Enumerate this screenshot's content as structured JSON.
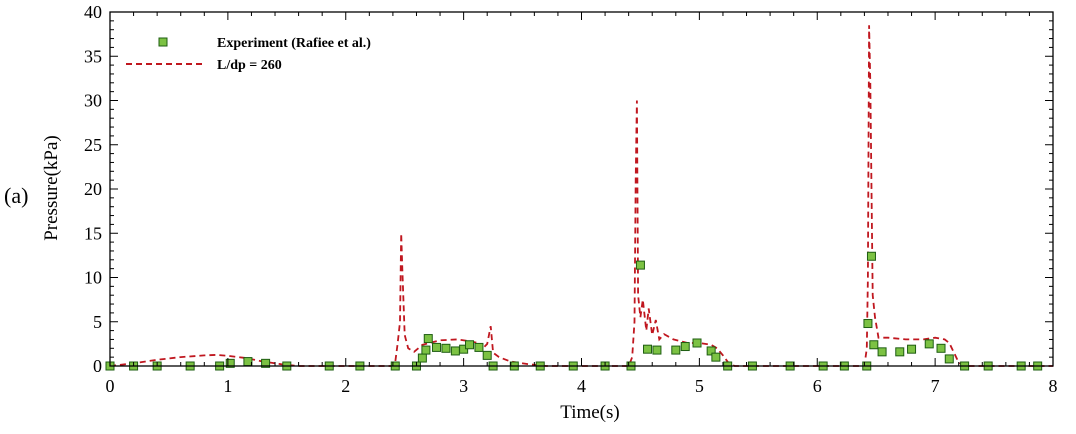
{
  "panel_label": "(a)",
  "chart_data": {
    "type": "line",
    "xlabel": "Time(s)",
    "ylabel": "Pressure(kPa)",
    "xlim": [
      0,
      8
    ],
    "ylim": [
      0,
      40
    ],
    "xticks": [
      0,
      1,
      2,
      3,
      4,
      5,
      6,
      7,
      8
    ],
    "yticks": [
      0,
      5,
      10,
      15,
      20,
      25,
      30,
      35,
      40
    ],
    "grid": false,
    "legend_position": "top-left",
    "series": [
      {
        "name": "Experiment (Rafiee et al.)",
        "kind": "scatter",
        "marker": "square",
        "color": "#7cc243",
        "edge_color": "#1e5d12",
        "points": [
          [
            0.0,
            0.0
          ],
          [
            0.2,
            0.0
          ],
          [
            0.4,
            0.0
          ],
          [
            0.68,
            0.0
          ],
          [
            0.93,
            0.0
          ],
          [
            1.02,
            0.3
          ],
          [
            1.17,
            0.5
          ],
          [
            1.32,
            0.3
          ],
          [
            1.5,
            0.0
          ],
          [
            1.86,
            0.0
          ],
          [
            2.12,
            0.0
          ],
          [
            2.42,
            0.0
          ],
          [
            2.6,
            0.0
          ],
          [
            2.65,
            0.9
          ],
          [
            2.68,
            1.8
          ],
          [
            2.7,
            3.1
          ],
          [
            2.77,
            2.1
          ],
          [
            2.85,
            2.0
          ],
          [
            2.93,
            1.7
          ],
          [
            3.0,
            1.9
          ],
          [
            3.05,
            2.4
          ],
          [
            3.13,
            2.1
          ],
          [
            3.2,
            1.2
          ],
          [
            3.25,
            0.0
          ],
          [
            3.43,
            0.0
          ],
          [
            3.65,
            0.0
          ],
          [
            3.93,
            0.0
          ],
          [
            4.2,
            0.0
          ],
          [
            4.42,
            0.0
          ],
          [
            4.5,
            11.4
          ],
          [
            4.56,
            1.9
          ],
          [
            4.64,
            1.8
          ],
          [
            4.8,
            1.8
          ],
          [
            4.88,
            2.2
          ],
          [
            4.98,
            2.6
          ],
          [
            5.1,
            1.7
          ],
          [
            5.14,
            1.0
          ],
          [
            5.24,
            0.0
          ],
          [
            5.45,
            0.0
          ],
          [
            5.77,
            0.0
          ],
          [
            6.05,
            0.0
          ],
          [
            6.23,
            0.0
          ],
          [
            6.42,
            0.0
          ],
          [
            6.43,
            4.8
          ],
          [
            6.46,
            12.4
          ],
          [
            6.48,
            2.4
          ],
          [
            6.55,
            1.6
          ],
          [
            6.7,
            1.6
          ],
          [
            6.8,
            1.9
          ],
          [
            6.95,
            2.5
          ],
          [
            7.05,
            2.0
          ],
          [
            7.12,
            0.8
          ],
          [
            7.25,
            0.0
          ],
          [
            7.45,
            0.0
          ],
          [
            7.73,
            0.0
          ],
          [
            7.87,
            0.0
          ]
        ]
      },
      {
        "name": "L/dp = 260",
        "kind": "line",
        "dash": "dashed",
        "color": "#c0171f",
        "points": [
          [
            0.0,
            0.0
          ],
          [
            0.2,
            0.3
          ],
          [
            0.4,
            0.7
          ],
          [
            0.6,
            1.0
          ],
          [
            0.8,
            1.2
          ],
          [
            0.9,
            1.25
          ],
          [
            1.0,
            1.15
          ],
          [
            1.15,
            0.9
          ],
          [
            1.3,
            0.5
          ],
          [
            1.45,
            0.2
          ],
          [
            1.6,
            0.0
          ],
          [
            2.0,
            0.0
          ],
          [
            2.4,
            0.0
          ],
          [
            2.42,
            0.5
          ],
          [
            2.44,
            2.5
          ],
          [
            2.46,
            5.0
          ],
          [
            2.47,
            15.0
          ],
          [
            2.48,
            11.0
          ],
          [
            2.5,
            3.5
          ],
          [
            2.53,
            2.0
          ],
          [
            2.58,
            1.6
          ],
          [
            2.65,
            2.4
          ],
          [
            2.8,
            2.9
          ],
          [
            2.95,
            3.0
          ],
          [
            3.05,
            2.8
          ],
          [
            3.12,
            2.6
          ],
          [
            3.15,
            1.8
          ],
          [
            3.2,
            2.5
          ],
          [
            3.23,
            4.5
          ],
          [
            3.25,
            1.5
          ],
          [
            3.3,
            1.0
          ],
          [
            3.4,
            0.5
          ],
          [
            3.55,
            0.2
          ],
          [
            3.7,
            0.0
          ],
          [
            4.0,
            0.0
          ],
          [
            4.4,
            0.0
          ],
          [
            4.43,
            1.0
          ],
          [
            4.45,
            5.0
          ],
          [
            4.46,
            21.0
          ],
          [
            4.47,
            30.0
          ],
          [
            4.48,
            8.0
          ],
          [
            4.5,
            5.5
          ],
          [
            4.52,
            7.5
          ],
          [
            4.55,
            4.0
          ],
          [
            4.57,
            6.5
          ],
          [
            4.6,
            3.5
          ],
          [
            4.63,
            5.2
          ],
          [
            4.66,
            3.0
          ],
          [
            4.7,
            3.6
          ],
          [
            4.78,
            3.0
          ],
          [
            4.9,
            2.6
          ],
          [
            5.0,
            2.6
          ],
          [
            5.1,
            2.4
          ],
          [
            5.15,
            2.0
          ],
          [
            5.2,
            1.2
          ],
          [
            5.25,
            0.3
          ],
          [
            5.3,
            0.0
          ],
          [
            5.6,
            0.0
          ],
          [
            6.0,
            0.0
          ],
          [
            6.3,
            0.0
          ],
          [
            6.4,
            0.0
          ],
          [
            6.42,
            2.0
          ],
          [
            6.43,
            10.0
          ],
          [
            6.44,
            38.5
          ],
          [
            6.45,
            32.0
          ],
          [
            6.46,
            20.0
          ],
          [
            6.47,
            8.0
          ],
          [
            6.49,
            5.5
          ],
          [
            6.52,
            3.2
          ],
          [
            6.6,
            3.2
          ],
          [
            6.75,
            3.0
          ],
          [
            6.9,
            3.0
          ],
          [
            7.0,
            3.2
          ],
          [
            7.08,
            3.0
          ],
          [
            7.12,
            2.6
          ],
          [
            7.16,
            1.5
          ],
          [
            7.2,
            0.4
          ],
          [
            7.25,
            0.0
          ],
          [
            7.5,
            0.0
          ],
          [
            8.0,
            0.0
          ]
        ]
      }
    ]
  }
}
